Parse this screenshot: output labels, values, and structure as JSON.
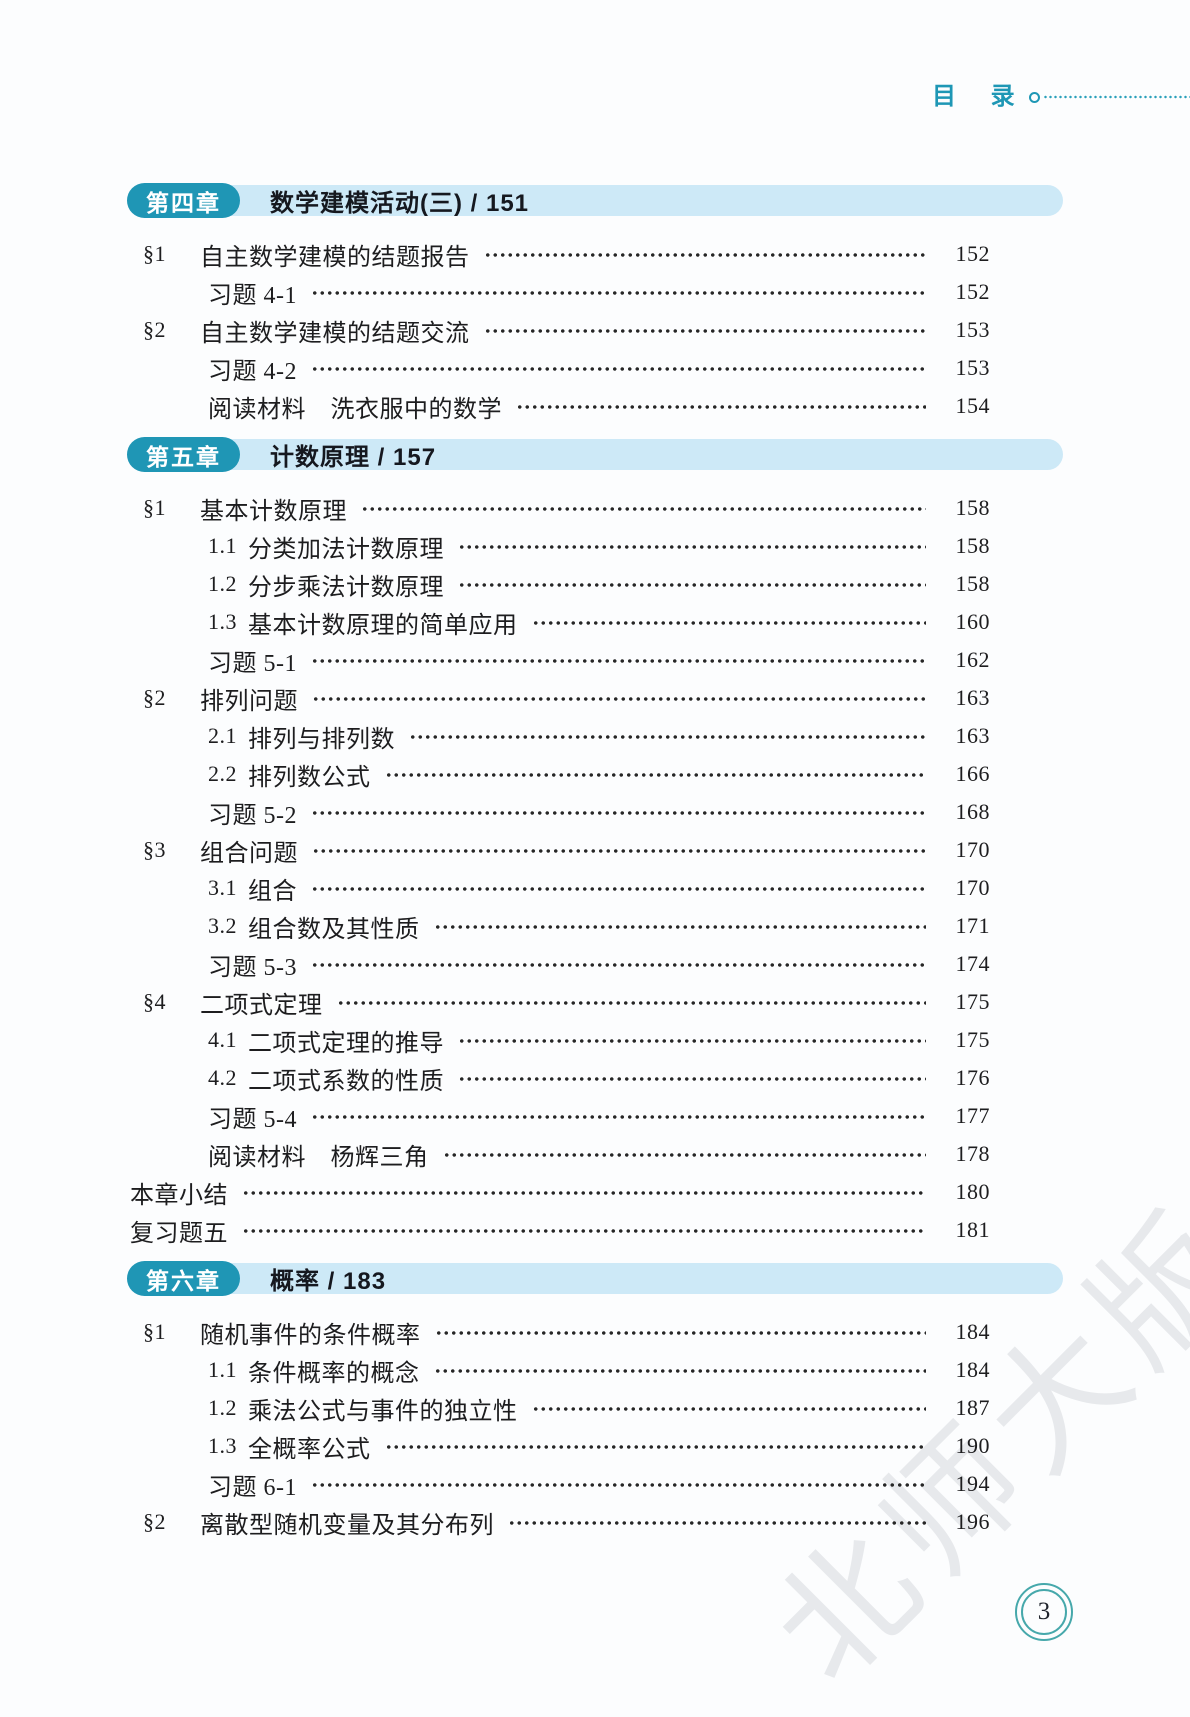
{
  "header": {
    "title": "目 录"
  },
  "watermark": {
    "text": "北师大版"
  },
  "footer": {
    "page_number": "3"
  },
  "colors": {
    "accent_teal": "#1f96b5",
    "chapter_bar_blue": "#cde9f7",
    "page_circle_teal": "#46a8ab",
    "text": "#1d1d1f"
  },
  "toc": {
    "chapters": [
      {
        "pill": "第四章",
        "title": "数学建模活动(三)",
        "page": "151",
        "items": [
          {
            "type": "section",
            "num": "§1",
            "title": "自主数学建模的结题报告",
            "page": "152"
          },
          {
            "type": "exercise",
            "title": "习题 4-1",
            "page": "152"
          },
          {
            "type": "section",
            "num": "§2",
            "title": "自主数学建模的结题交流",
            "page": "153"
          },
          {
            "type": "exercise",
            "title": "习题 4-2",
            "page": "153"
          },
          {
            "type": "exercise",
            "title": "阅读材料　洗衣服中的数学",
            "page": "154"
          }
        ]
      },
      {
        "pill": "第五章",
        "title": "计数原理",
        "page": "157",
        "items": [
          {
            "type": "section",
            "num": "§1",
            "title": "基本计数原理",
            "page": "158"
          },
          {
            "type": "sub",
            "num": "1.1",
            "title": "分类加法计数原理",
            "page": "158"
          },
          {
            "type": "sub",
            "num": "1.2",
            "title": "分步乘法计数原理",
            "page": "158"
          },
          {
            "type": "sub",
            "num": "1.3",
            "title": "基本计数原理的简单应用",
            "page": "160"
          },
          {
            "type": "exercise",
            "title": "习题 5-1",
            "page": "162"
          },
          {
            "type": "section",
            "num": "§2",
            "title": "排列问题",
            "page": "163"
          },
          {
            "type": "sub",
            "num": "2.1",
            "title": "排列与排列数",
            "page": "163"
          },
          {
            "type": "sub",
            "num": "2.2",
            "title": "排列数公式",
            "page": "166"
          },
          {
            "type": "exercise",
            "title": "习题 5-2",
            "page": "168"
          },
          {
            "type": "section",
            "num": "§3",
            "title": "组合问题",
            "page": "170"
          },
          {
            "type": "sub",
            "num": "3.1",
            "title": "组合",
            "page": "170"
          },
          {
            "type": "sub",
            "num": "3.2",
            "title": "组合数及其性质",
            "page": "171"
          },
          {
            "type": "exercise",
            "title": "习题 5-3",
            "page": "174"
          },
          {
            "type": "section",
            "num": "§4",
            "title": "二项式定理",
            "page": "175"
          },
          {
            "type": "sub",
            "num": "4.1",
            "title": "二项式定理的推导",
            "page": "175"
          },
          {
            "type": "sub",
            "num": "4.2",
            "title": "二项式系数的性质",
            "page": "176"
          },
          {
            "type": "exercise",
            "title": "习题 5-4",
            "page": "177"
          },
          {
            "type": "exercise",
            "title": "阅读材料　杨辉三角",
            "page": "178"
          },
          {
            "type": "plain",
            "title": "本章小结",
            "page": "180"
          },
          {
            "type": "plain",
            "title": "复习题五",
            "page": "181"
          }
        ]
      },
      {
        "pill": "第六章",
        "title": "概率",
        "page": "183",
        "items": [
          {
            "type": "section",
            "num": "§1",
            "title": "随机事件的条件概率",
            "page": "184"
          },
          {
            "type": "sub",
            "num": "1.1",
            "title": "条件概率的概念",
            "page": "184"
          },
          {
            "type": "sub",
            "num": "1.2",
            "title": "乘法公式与事件的独立性",
            "page": "187"
          },
          {
            "type": "sub",
            "num": "1.3",
            "title": "全概率公式",
            "page": "190"
          },
          {
            "type": "exercise",
            "title": "习题 6-1",
            "page": "194"
          },
          {
            "type": "section",
            "num": "§2",
            "title": "离散型随机变量及其分布列",
            "page": "196"
          }
        ]
      }
    ]
  }
}
